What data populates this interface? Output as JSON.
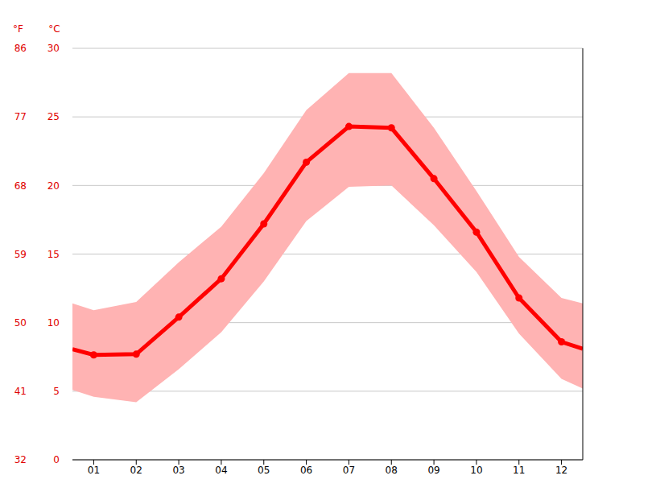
{
  "chart_data": {
    "type": "line",
    "x": [
      0.5,
      1,
      2,
      3,
      4,
      5,
      6,
      7,
      8,
      9,
      10,
      11,
      12,
      12.5
    ],
    "xlim": [
      0.5,
      12.5
    ],
    "xticks": [
      {
        "value": 1,
        "label": "01"
      },
      {
        "value": 2,
        "label": "02"
      },
      {
        "value": 3,
        "label": "03"
      },
      {
        "value": 4,
        "label": "04"
      },
      {
        "value": 5,
        "label": "05"
      },
      {
        "value": 6,
        "label": "06"
      },
      {
        "value": 7,
        "label": "07"
      },
      {
        "value": 8,
        "label": "08"
      },
      {
        "value": 9,
        "label": "09"
      },
      {
        "value": 10,
        "label": "10"
      },
      {
        "value": 11,
        "label": "11"
      },
      {
        "value": 12,
        "label": "12"
      }
    ],
    "y_label": "°C",
    "ylim": [
      0,
      30
    ],
    "yticks": [
      0,
      5,
      10,
      15,
      20,
      25,
      30
    ],
    "y2_label": "°F",
    "y2lim": [
      32,
      86
    ],
    "y2ticks": [
      32,
      41,
      50,
      59,
      68,
      77,
      86
    ],
    "grid": true,
    "series": [
      {
        "type": "area_range",
        "color": "#ffb3b3",
        "low": [
          5.1,
          4.6,
          4.2,
          6.6,
          9.3,
          13.0,
          17.4,
          19.9,
          20.0,
          17.1,
          13.7,
          9.2,
          5.9,
          5.2
        ],
        "high": [
          11.4,
          10.9,
          11.5,
          14.4,
          17.0,
          20.9,
          25.5,
          28.2,
          28.2,
          24.2,
          19.6,
          14.8,
          11.8,
          11.4
        ]
      },
      {
        "type": "line",
        "color": "#ff0000",
        "marker": "o",
        "values": [
          8.06,
          7.65,
          7.7,
          10.4,
          13.2,
          17.2,
          21.7,
          24.3,
          24.2,
          20.5,
          16.6,
          11.8,
          8.6,
          8.1
        ]
      }
    ]
  }
}
